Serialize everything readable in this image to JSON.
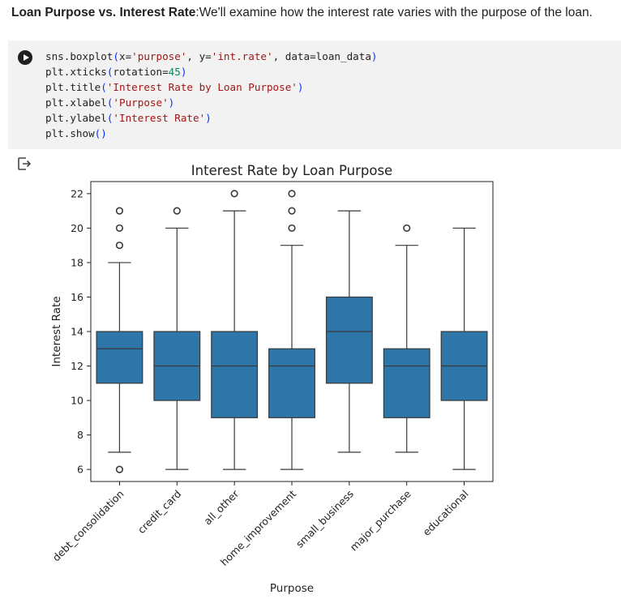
{
  "markdown": {
    "bold": "Loan Purpose vs. Interest Rate",
    "text": ":We'll examine how the interest rate varies with the purpose of the loan."
  },
  "code": {
    "lines": [
      "sns.boxplot(x='purpose', y='int.rate', data=loan_data)",
      "plt.xticks(rotation=45)",
      "plt.title('Interest Rate by Loan Purpose')",
      "plt.xlabel('Purpose')",
      "plt.ylabel('Interest Rate')",
      "plt.show()"
    ]
  },
  "icons": {
    "run": "play-icon",
    "output": "output-icon"
  },
  "colors": {
    "box": "#2e75a8",
    "edge": "#3a3a3a",
    "cell_bg": "#f2f2f2"
  },
  "chart_data": {
    "type": "box",
    "title": "Interest Rate by Loan Purpose",
    "xlabel": "Purpose",
    "ylabel": "Interest Rate",
    "ylim": [
      5.3,
      22.7
    ],
    "yticks": [
      6,
      8,
      10,
      12,
      14,
      16,
      18,
      20,
      22
    ],
    "xtick_rotation": 45,
    "grid": false,
    "categories": [
      "debt_consolidation",
      "credit_card",
      "all_other",
      "home_improvement",
      "small_business",
      "major_purchase",
      "educational"
    ],
    "boxes": [
      {
        "q1": 11,
        "median": 13,
        "q3": 14,
        "whislo": 7,
        "whishi": 18,
        "fliers": [
          6,
          19,
          20,
          21
        ]
      },
      {
        "q1": 10,
        "median": 12,
        "q3": 14,
        "whislo": 6,
        "whishi": 20,
        "fliers": [
          21
        ]
      },
      {
        "q1": 9,
        "median": 12,
        "q3": 14,
        "whislo": 6,
        "whishi": 21,
        "fliers": [
          22
        ]
      },
      {
        "q1": 9,
        "median": 12,
        "q3": 13,
        "whislo": 6,
        "whishi": 19,
        "fliers": [
          20,
          21,
          22
        ]
      },
      {
        "q1": 11,
        "median": 14,
        "q3": 16,
        "whislo": 7,
        "whishi": 21,
        "fliers": []
      },
      {
        "q1": 9,
        "median": 12,
        "q3": 13,
        "whislo": 7,
        "whishi": 19,
        "fliers": [
          20
        ]
      },
      {
        "q1": 10,
        "median": 12,
        "q3": 14,
        "whislo": 6,
        "whishi": 20,
        "fliers": []
      }
    ]
  }
}
